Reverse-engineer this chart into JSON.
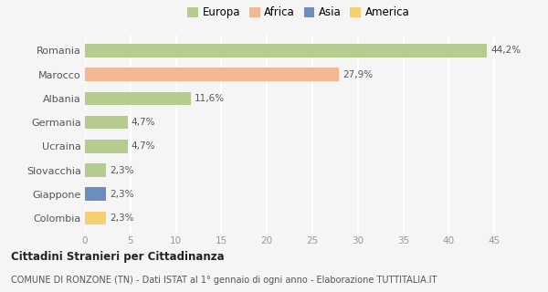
{
  "categories": [
    "Romania",
    "Marocco",
    "Albania",
    "Germania",
    "Ucraina",
    "Slovacchia",
    "Giappone",
    "Colombia"
  ],
  "values": [
    44.2,
    27.9,
    11.6,
    4.7,
    4.7,
    2.3,
    2.3,
    2.3
  ],
  "labels": [
    "44,2%",
    "27,9%",
    "11,6%",
    "4,7%",
    "4,7%",
    "2,3%",
    "2,3%",
    "2,3%"
  ],
  "colors": [
    "#b5cc8e",
    "#f0b992",
    "#b5cc8e",
    "#b5cc8e",
    "#b5cc8e",
    "#b5cc8e",
    "#6b8ebf",
    "#f5d06e"
  ],
  "legend_labels": [
    "Europa",
    "Africa",
    "Asia",
    "America"
  ],
  "legend_colors": [
    "#b5cc8e",
    "#f0b992",
    "#6b8ebf",
    "#f5d06e"
  ],
  "xlim": [
    0,
    47
  ],
  "xticks": [
    0,
    5,
    10,
    15,
    20,
    25,
    30,
    35,
    40,
    45
  ],
  "title_bold": "Cittadini Stranieri per Cittadinanza",
  "subtitle": "COMUNE DI RONZONE (TN) - Dati ISTAT al 1° gennaio di ogni anno - Elaborazione TUTTITALIA.IT",
  "bg_color": "#f5f5f5",
  "grid_color": "#ffffff",
  "bar_height": 0.55
}
